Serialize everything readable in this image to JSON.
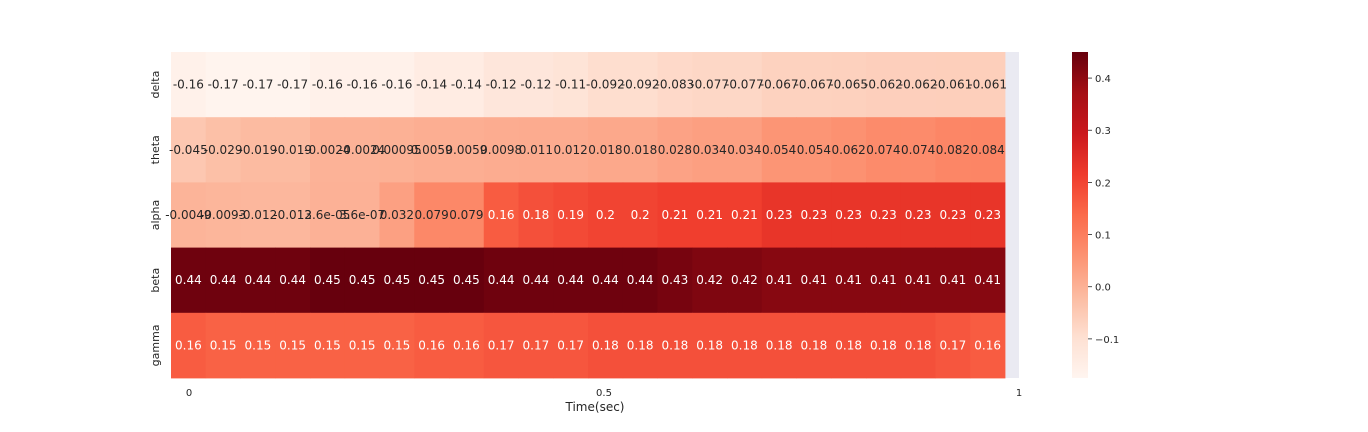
{
  "colors": {
    "strip": "#eaeaf2",
    "text_dark": "#262626",
    "text_light": "#ffffff",
    "cmap": [
      "#fff5f0",
      "#fee0d2",
      "#fcbba1",
      "#fc9272",
      "#fb6a4a",
      "#ef3b2c",
      "#cb181d",
      "#a50f15",
      "#67000d"
    ]
  },
  "chart_data": {
    "type": "heatmap",
    "xlabel": "Time(sec)",
    "x_ticks": [
      "0",
      "0.5",
      "1"
    ],
    "x_tick_values": [
      0,
      0.5,
      1
    ],
    "xlim": [
      0,
      1
    ],
    "rows": [
      "delta",
      "theta",
      "alpha",
      "beta",
      "gamma"
    ],
    "cells": [
      [
        "-0.16",
        "-0.17",
        "-0.17",
        "-0.17",
        "-0.16",
        "-0.16",
        "-0.16",
        "-0.14",
        "-0.14",
        "-0.12",
        "-0.12",
        "-0.11",
        "-0.092",
        "-0.092",
        "-0.083",
        "-0.077",
        "-0.077",
        "-0.067",
        "-0.067",
        "-0.065",
        "-0.062",
        "-0.062",
        "-0.061",
        "-0.061"
      ],
      [
        "-0.045",
        "-0.029",
        "-0.019",
        "-0.019",
        "-0.0024",
        "-0.0024",
        "0.00095",
        "0.0059",
        "0.0059",
        "0.0098",
        "0.011",
        "0.012",
        "0.018",
        "0.018",
        "0.028",
        "0.034",
        "0.034",
        "0.054",
        "0.054",
        "0.062",
        "0.074",
        "0.074",
        "0.082",
        "0.084"
      ],
      [
        "-0.0049",
        "-0.0093",
        "-0.012",
        "-0.012",
        "3.6e-05",
        "3.6e-07",
        "0.032",
        "0.079",
        "0.079",
        "0.16",
        "0.18",
        "0.19",
        "0.2",
        "0.2",
        "0.21",
        "0.21",
        "0.21",
        "0.23",
        "0.23",
        "0.23",
        "0.23",
        "0.23",
        "0.23",
        "0.23"
      ],
      [
        "0.44",
        "0.44",
        "0.44",
        "0.44",
        "0.45",
        "0.45",
        "0.45",
        "0.45",
        "0.45",
        "0.44",
        "0.44",
        "0.44",
        "0.44",
        "0.44",
        "0.43",
        "0.42",
        "0.42",
        "0.41",
        "0.41",
        "0.41",
        "0.41",
        "0.41",
        "0.41",
        "0.41"
      ],
      [
        "0.16",
        "0.15",
        "0.15",
        "0.15",
        "0.15",
        "0.15",
        "0.15",
        "0.16",
        "0.16",
        "0.17",
        "0.17",
        "0.17",
        "0.18",
        "0.18",
        "0.18",
        "0.18",
        "0.18",
        "0.18",
        "0.18",
        "0.18",
        "0.18",
        "0.18",
        "0.17",
        "0.16"
      ]
    ],
    "colorbar": {
      "vmin": -0.175,
      "vmax": 0.45,
      "ticks": [
        "−0.1",
        "0.0",
        "0.1",
        "0.2",
        "0.3",
        "0.4"
      ],
      "tick_values": [
        -0.1,
        0.0,
        0.1,
        0.2,
        0.3,
        0.4
      ]
    },
    "grid": false
  }
}
